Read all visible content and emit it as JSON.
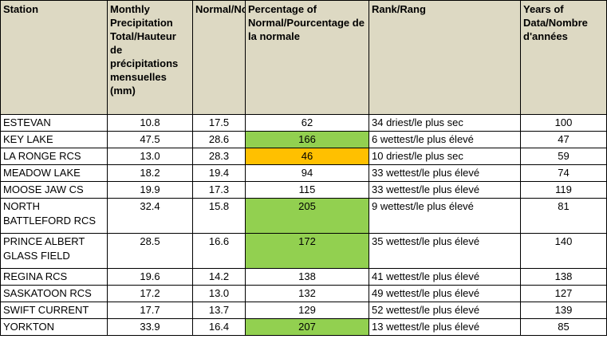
{
  "headers": {
    "station": "Station",
    "total": "Monthly Precipitation Total/Hauteur de précipitations mensuelles (mm)",
    "normal": "Normal/Normale",
    "percentage": "Percentage of Normal/Pourcentage de la normale",
    "rank": "Rank/Rang",
    "years": "Years of Data/Nombre d'années"
  },
  "highlight_colors": {
    "green": "#92d050",
    "orange": "#ffc000",
    "header_bg": "#ddd9c3"
  },
  "rows": [
    {
      "station": "ESTEVAN",
      "total": "10.8",
      "normal": "17.5",
      "percentage": "62",
      "rank": "34 driest/le plus sec",
      "years": "100",
      "highlight": "none"
    },
    {
      "station": "KEY LAKE",
      "total": "47.5",
      "normal": "28.6",
      "percentage": "166",
      "rank": "6 wettest/le plus élevé",
      "years": "47",
      "highlight": "green"
    },
    {
      "station": "LA RONGE RCS",
      "total": "13.0",
      "normal": "28.3",
      "percentage": "46",
      "rank": "10 driest/le plus sec",
      "years": "59",
      "highlight": "orange"
    },
    {
      "station": "MEADOW LAKE",
      "total": "18.2",
      "normal": "19.4",
      "percentage": "94",
      "rank": "33 wettest/le plus élevé",
      "years": "74",
      "highlight": "none"
    },
    {
      "station": "MOOSE JAW CS",
      "total": "19.9",
      "normal": "17.3",
      "percentage": "115",
      "rank": "33 wettest/le plus élevé",
      "years": "119",
      "highlight": "none"
    },
    {
      "station": "NORTH BATTLEFORD RCS",
      "total": "32.4",
      "normal": "15.8",
      "percentage": "205",
      "rank": "9 wettest/le plus élevé",
      "years": "81",
      "highlight": "green"
    },
    {
      "station": "PRINCE ALBERT GLASS FIELD",
      "total": "28.5",
      "normal": "16.6",
      "percentage": "172",
      "rank": "35 wettest/le plus élevé",
      "years": "140",
      "highlight": "green"
    },
    {
      "station": "REGINA RCS",
      "total": "19.6",
      "normal": "14.2",
      "percentage": "138",
      "rank": "41 wettest/le plus élevé",
      "years": "138",
      "highlight": "none"
    },
    {
      "station": "SASKATOON RCS",
      "total": "17.2",
      "normal": "13.0",
      "percentage": "132",
      "rank": "49 wettest/le plus élevé",
      "years": "127",
      "highlight": "none"
    },
    {
      "station": "SWIFT CURRENT",
      "total": "17.7",
      "normal": "13.7",
      "percentage": "129",
      "rank": "52 wettest/le plus élevé",
      "years": "139",
      "highlight": "none"
    },
    {
      "station": "YORKTON",
      "total": "33.9",
      "normal": "16.4",
      "percentage": "207",
      "rank": "13 wettest/le plus élevé",
      "years": "85",
      "highlight": "green"
    }
  ]
}
